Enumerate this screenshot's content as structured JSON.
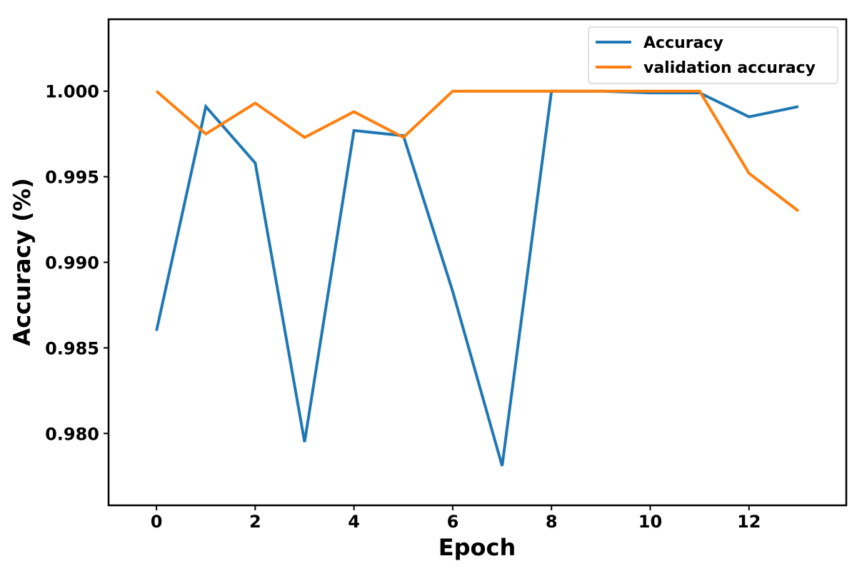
{
  "chart_data": {
    "type": "line",
    "xlabel": "Epoch",
    "ylabel": "Accuracy (%)",
    "xlim": [
      -0.97,
      13.97
    ],
    "ylim": [
      0.9758,
      1.0042
    ],
    "xticks": [
      0,
      2,
      4,
      6,
      8,
      10,
      12
    ],
    "xtick_labels": [
      "0",
      "2",
      "4",
      "6",
      "8",
      "10",
      "12"
    ],
    "yticks": [
      0.98,
      0.985,
      0.99,
      0.995,
      1.0
    ],
    "ytick_labels": [
      "0.980",
      "0.985",
      "0.990",
      "0.995",
      "1.000"
    ],
    "grid": false,
    "legend_position": "top-right",
    "x": [
      0,
      1,
      2,
      3,
      4,
      5,
      6,
      7,
      8,
      9,
      10,
      11,
      12,
      13
    ],
    "series": [
      {
        "name": "Accuracy",
        "color": "#1f77b4",
        "values": [
          0.986,
          0.9991,
          0.9958,
          0.9795,
          0.9977,
          0.9974,
          0.9883,
          0.9781,
          1.0,
          1.0,
          0.9999,
          0.9999,
          0.9985,
          0.9991
        ]
      },
      {
        "name": "validation accuracy",
        "color": "#ff7f0e",
        "values": [
          1.0,
          0.9975,
          0.9993,
          0.9973,
          0.9988,
          0.9973,
          1.0,
          1.0,
          1.0,
          1.0,
          1.0,
          1.0,
          0.9952,
          0.993
        ]
      }
    ]
  }
}
